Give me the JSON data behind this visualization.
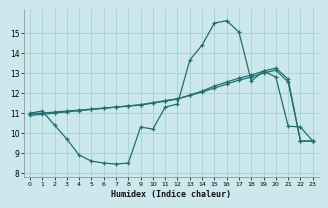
{
  "background_color": "#cce8ec",
  "grid_color": "#aad4d8",
  "line_color": "#1e7070",
  "xlabel": "Humidex (Indice chaleur)",
  "xlim": [
    -0.5,
    23.5
  ],
  "ylim": [
    7.8,
    16.2
  ],
  "yticks": [
    8,
    9,
    10,
    11,
    12,
    13,
    14,
    15
  ],
  "xticks": [
    0,
    1,
    2,
    3,
    4,
    5,
    6,
    7,
    8,
    9,
    10,
    11,
    12,
    13,
    14,
    15,
    16,
    17,
    18,
    19,
    20,
    21,
    22,
    23
  ],
  "curve1_x": [
    0,
    1,
    2,
    3,
    4,
    5,
    6,
    7,
    8,
    9,
    10,
    11,
    12,
    13,
    14,
    15,
    16,
    17,
    18,
    19,
    20,
    21,
    22,
    23
  ],
  "curve1_y": [
    11.0,
    11.1,
    10.4,
    9.7,
    8.9,
    8.6,
    8.5,
    8.45,
    8.5,
    10.3,
    10.2,
    11.3,
    11.45,
    13.65,
    14.4,
    15.5,
    15.62,
    15.05,
    12.6,
    13.1,
    12.8,
    10.35,
    10.3,
    9.6
  ],
  "curve2_x": [
    0,
    1,
    2,
    3,
    4,
    5,
    6,
    7,
    8,
    9,
    10,
    11,
    12,
    13,
    14,
    15,
    16,
    17,
    18,
    19,
    20,
    21,
    22,
    23
  ],
  "curve2_y": [
    10.95,
    11.0,
    11.05,
    11.1,
    11.15,
    11.2,
    11.25,
    11.3,
    11.35,
    11.4,
    11.5,
    11.6,
    11.7,
    11.9,
    12.1,
    12.35,
    12.55,
    12.75,
    12.9,
    13.1,
    13.25,
    12.7,
    9.6,
    9.6
  ],
  "curve3_x": [
    0,
    1,
    2,
    3,
    4,
    5,
    6,
    7,
    8,
    9,
    10,
    11,
    12,
    13,
    14,
    15,
    16,
    17,
    18,
    19,
    20,
    21,
    22,
    23
  ],
  "curve3_y": [
    10.88,
    10.94,
    11.0,
    11.06,
    11.12,
    11.18,
    11.24,
    11.3,
    11.36,
    11.42,
    11.52,
    11.62,
    11.72,
    11.88,
    12.05,
    12.25,
    12.45,
    12.65,
    12.8,
    13.0,
    13.15,
    12.55,
    9.6,
    9.6
  ]
}
